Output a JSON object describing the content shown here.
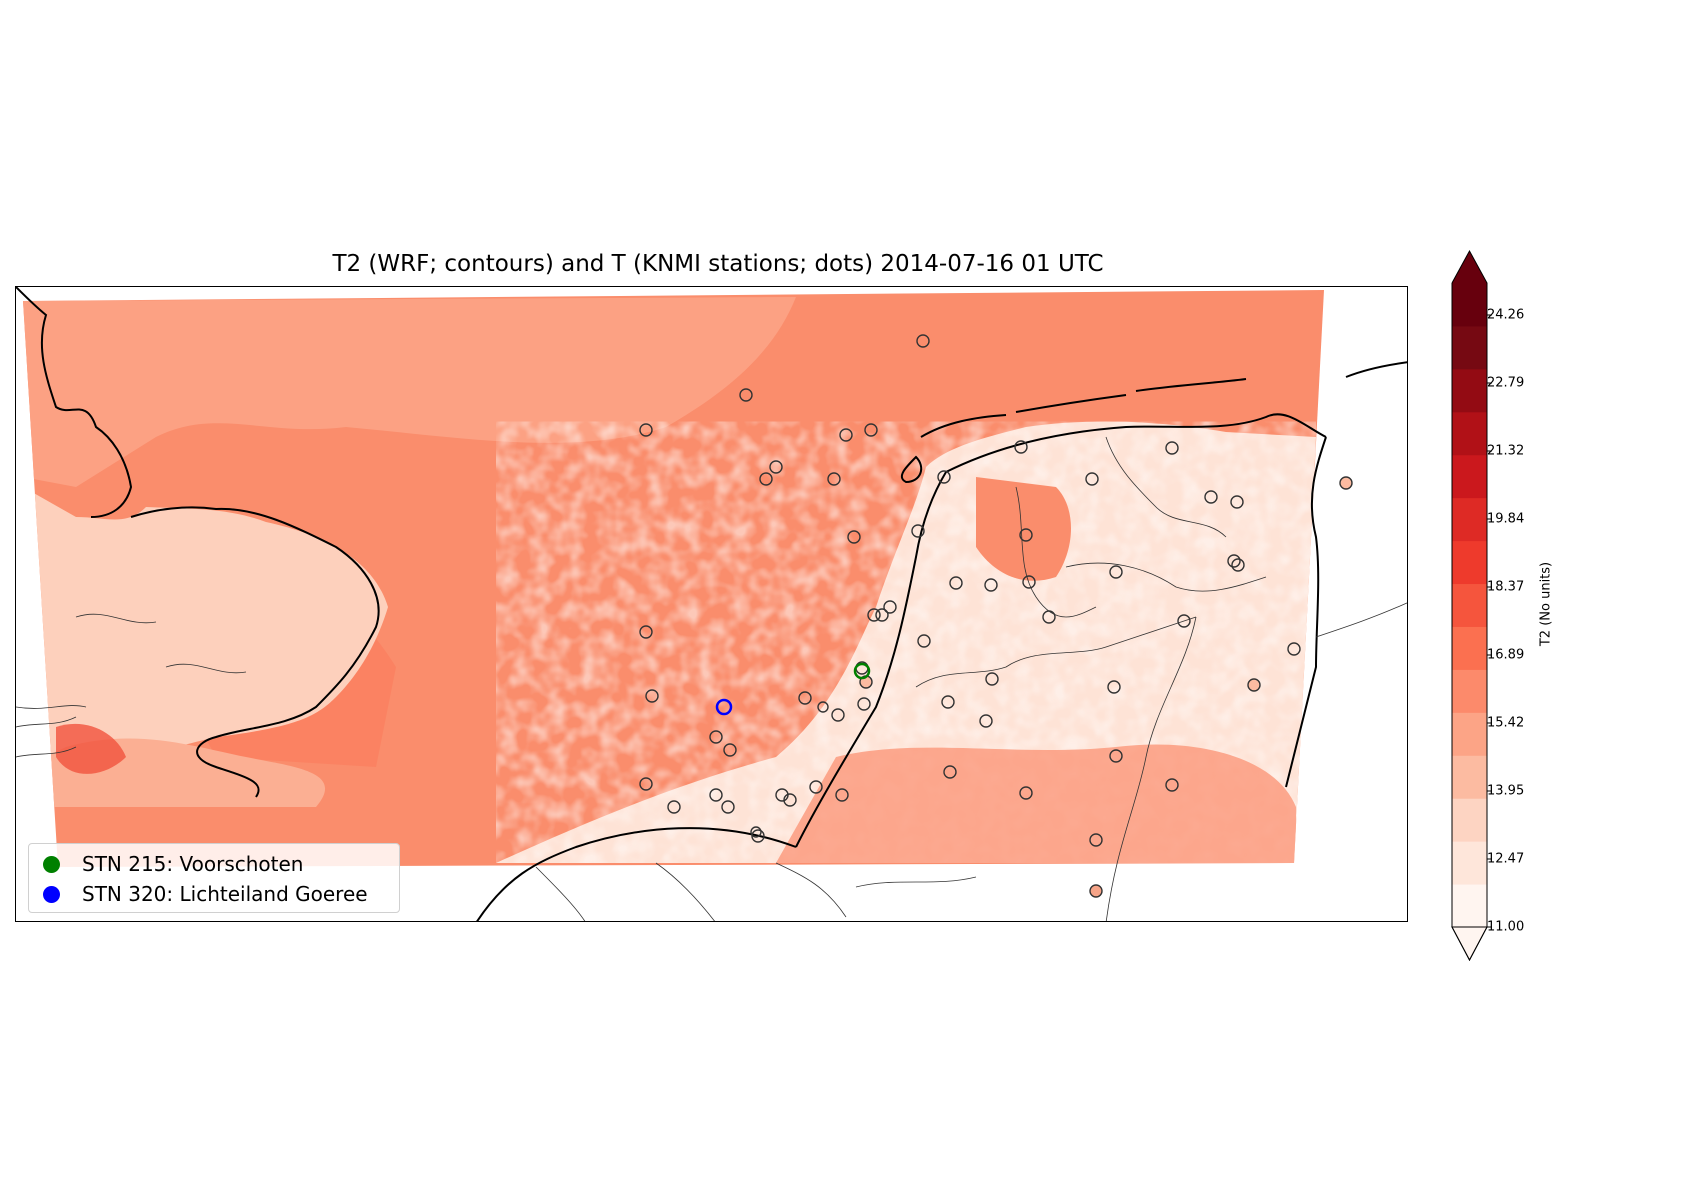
{
  "figure": {
    "title": "T2 (WRF; contours) and T (KNMI stations; dots) 2014-07-16 01 UTC"
  },
  "legend": {
    "items": [
      {
        "label": "STN 215: Voorschoten",
        "color": "#008000"
      },
      {
        "label": "STN 320: Lichteiland Goeree",
        "color": "#0000ff"
      }
    ]
  },
  "colorbar": {
    "label": "T2 (No units)",
    "colormap": "Reds",
    "min": 11.0,
    "max": 25.0,
    "extend": "both",
    "tick_labels": [
      "11.00",
      "12.47",
      "13.95",
      "15.42",
      "16.89",
      "18.37",
      "19.84",
      "21.32",
      "22.79",
      "24.26"
    ],
    "colors": [
      "#fff5f0",
      "#fee6da",
      "#fdd4c2",
      "#fcbba1",
      "#fca486",
      "#fc8a6b",
      "#fb7050",
      "#f5553d",
      "#ee3a2c",
      "#de2a25",
      "#cb181d",
      "#b11117",
      "#930b13",
      "#760912",
      "#67000d"
    ]
  },
  "chart_data": {
    "type": "heatmap",
    "title": "T2 (WRF; contours) and T (KNMI stations; dots) 2014-07-16 01 UTC",
    "field": "T2",
    "colorbar_label": "T2 (No units)",
    "value_range": [
      11.0,
      25.0
    ],
    "levels": [
      11.0,
      12.47,
      13.95,
      15.42,
      16.89,
      18.37,
      19.84,
      21.32,
      22.79,
      24.26
    ],
    "highlighted_stations": [
      {
        "id": 215,
        "name": "Voorschoten",
        "marker_color": "#008000"
      },
      {
        "id": 320,
        "name": "Lichteiland Goeree",
        "marker_color": "#0000ff"
      }
    ],
    "station_count_shown": 62
  }
}
